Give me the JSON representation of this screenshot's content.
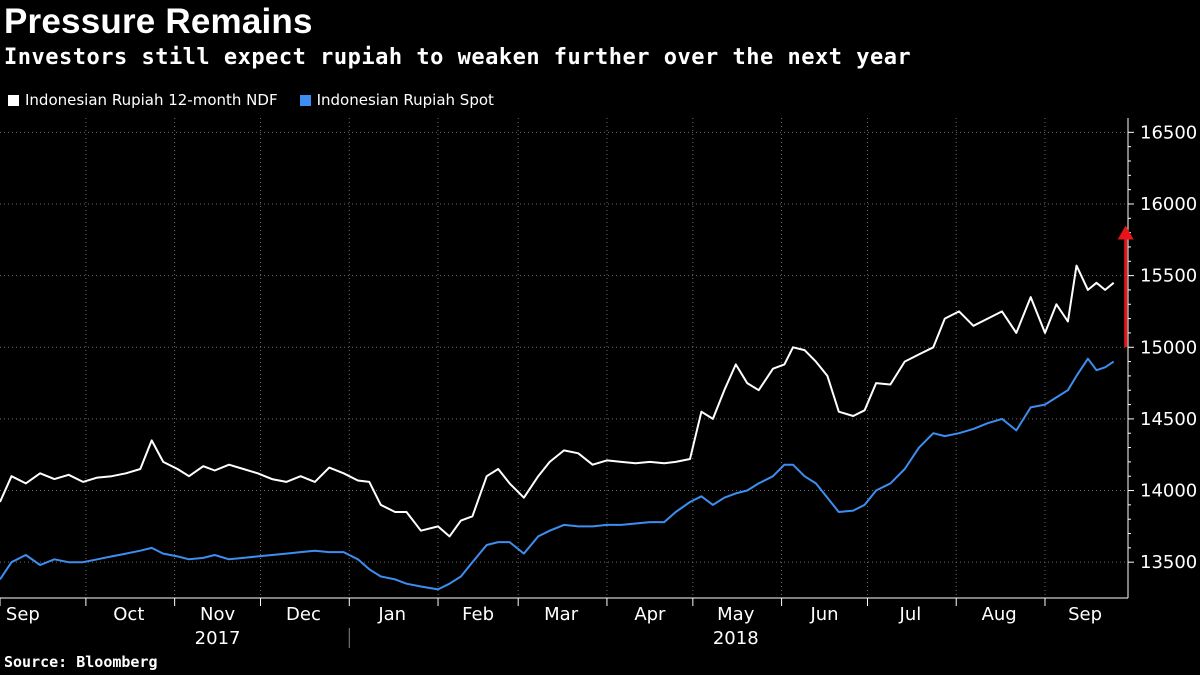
{
  "title": "Pressure Remains",
  "subtitle": "Investors still expect rupiah to weaken further over the next year",
  "source": "Source: Bloomberg",
  "colors": {
    "ndf": "#ffffff",
    "spot": "#3d8ef0",
    "arrow": "#e8141c",
    "grid": "#6a6a6a"
  },
  "chart_data": {
    "type": "line",
    "title": "Pressure Remains",
    "subtitle": "Investors still expect rupiah to weaken further over the next year",
    "ylim": [
      13250,
      16600
    ],
    "y_ticks": [
      13500,
      14000,
      14500,
      15000,
      15500,
      16000,
      16500
    ],
    "y_axis_position": "right",
    "grid": true,
    "legend_position": "top-left",
    "x_start": "2017-09-01",
    "x_end": "2018-09-30",
    "month_labels": [
      {
        "label": "Sep",
        "date": "2017-09-09"
      },
      {
        "label": "Oct",
        "date": "2017-10-16"
      },
      {
        "label": "Nov",
        "date": "2017-11-16"
      },
      {
        "label": "Dec",
        "date": "2017-12-16"
      },
      {
        "label": "Jan",
        "date": "2018-01-16"
      },
      {
        "label": "Feb",
        "date": "2018-02-15"
      },
      {
        "label": "Mar",
        "date": "2018-03-16"
      },
      {
        "label": "Apr",
        "date": "2018-04-16"
      },
      {
        "label": "May",
        "date": "2018-05-16"
      },
      {
        "label": "Jun",
        "date": "2018-06-16"
      },
      {
        "label": "Jul",
        "date": "2018-07-16"
      },
      {
        "label": "Aug",
        "date": "2018-08-16"
      },
      {
        "label": "Sep",
        "date": "2018-09-15"
      }
    ],
    "year_labels": [
      {
        "label": "2017",
        "date": "2017-11-16"
      },
      {
        "label": "2018",
        "date": "2018-05-16"
      }
    ],
    "series": [
      {
        "name": "Indonesian Rupiah 12-month NDF",
        "color": "#ffffff",
        "points": [
          [
            "2017-09-01",
            13920
          ],
          [
            "2017-09-05",
            14100
          ],
          [
            "2017-09-10",
            14050
          ],
          [
            "2017-09-15",
            14120
          ],
          [
            "2017-09-20",
            14080
          ],
          [
            "2017-09-25",
            14110
          ],
          [
            "2017-09-30",
            14060
          ],
          [
            "2017-10-05",
            14090
          ],
          [
            "2017-10-10",
            14100
          ],
          [
            "2017-10-15",
            14120
          ],
          [
            "2017-10-20",
            14150
          ],
          [
            "2017-10-24",
            14350
          ],
          [
            "2017-10-28",
            14200
          ],
          [
            "2017-11-02",
            14150
          ],
          [
            "2017-11-06",
            14100
          ],
          [
            "2017-11-11",
            14170
          ],
          [
            "2017-11-15",
            14140
          ],
          [
            "2017-11-20",
            14180
          ],
          [
            "2017-11-25",
            14150
          ],
          [
            "2017-11-30",
            14120
          ],
          [
            "2017-12-05",
            14080
          ],
          [
            "2017-12-10",
            14060
          ],
          [
            "2017-12-15",
            14100
          ],
          [
            "2017-12-20",
            14060
          ],
          [
            "2017-12-25",
            14160
          ],
          [
            "2017-12-30",
            14120
          ],
          [
            "2018-01-04",
            14070
          ],
          [
            "2018-01-08",
            14060
          ],
          [
            "2018-01-12",
            13900
          ],
          [
            "2018-01-17",
            13850
          ],
          [
            "2018-01-21",
            13850
          ],
          [
            "2018-01-26",
            13720
          ],
          [
            "2018-02-01",
            13750
          ],
          [
            "2018-02-05",
            13680
          ],
          [
            "2018-02-09",
            13790
          ],
          [
            "2018-02-13",
            13820
          ],
          [
            "2018-02-18",
            14100
          ],
          [
            "2018-02-22",
            14150
          ],
          [
            "2018-02-26",
            14050
          ],
          [
            "2018-03-03",
            13950
          ],
          [
            "2018-03-08",
            14100
          ],
          [
            "2018-03-12",
            14200
          ],
          [
            "2018-03-17",
            14280
          ],
          [
            "2018-03-22",
            14260
          ],
          [
            "2018-03-27",
            14180
          ],
          [
            "2018-04-01",
            14210
          ],
          [
            "2018-04-06",
            14200
          ],
          [
            "2018-04-11",
            14190
          ],
          [
            "2018-04-16",
            14200
          ],
          [
            "2018-04-21",
            14190
          ],
          [
            "2018-04-25",
            14200
          ],
          [
            "2018-04-30",
            14220
          ],
          [
            "2018-05-04",
            14550
          ],
          [
            "2018-05-08",
            14500
          ],
          [
            "2018-05-12",
            14700
          ],
          [
            "2018-05-16",
            14880
          ],
          [
            "2018-05-20",
            14750
          ],
          [
            "2018-05-24",
            14700
          ],
          [
            "2018-05-29",
            14850
          ],
          [
            "2018-06-02",
            14880
          ],
          [
            "2018-06-05",
            15000
          ],
          [
            "2018-06-09",
            14980
          ],
          [
            "2018-06-13",
            14900
          ],
          [
            "2018-06-17",
            14800
          ],
          [
            "2018-06-21",
            14550
          ],
          [
            "2018-06-26",
            14520
          ],
          [
            "2018-06-30",
            14560
          ],
          [
            "2018-07-04",
            14750
          ],
          [
            "2018-07-09",
            14740
          ],
          [
            "2018-07-14",
            14900
          ],
          [
            "2018-07-19",
            14950
          ],
          [
            "2018-07-24",
            15000
          ],
          [
            "2018-07-28",
            15200
          ],
          [
            "2018-08-02",
            15250
          ],
          [
            "2018-08-07",
            15150
          ],
          [
            "2018-08-12",
            15200
          ],
          [
            "2018-08-17",
            15250
          ],
          [
            "2018-08-22",
            15100
          ],
          [
            "2018-08-27",
            15350
          ],
          [
            "2018-09-01",
            15100
          ],
          [
            "2018-09-05",
            15300
          ],
          [
            "2018-09-09",
            15180
          ],
          [
            "2018-09-12",
            15570
          ],
          [
            "2018-09-16",
            15400
          ],
          [
            "2018-09-19",
            15450
          ],
          [
            "2018-09-22",
            15400
          ],
          [
            "2018-09-25",
            15450
          ]
        ]
      },
      {
        "name": "Indonesian Rupiah Spot",
        "color": "#3d8ef0",
        "points": [
          [
            "2017-09-01",
            13380
          ],
          [
            "2017-09-05",
            13500
          ],
          [
            "2017-09-10",
            13550
          ],
          [
            "2017-09-15",
            13480
          ],
          [
            "2017-09-20",
            13520
          ],
          [
            "2017-09-25",
            13500
          ],
          [
            "2017-09-30",
            13500
          ],
          [
            "2017-10-05",
            13520
          ],
          [
            "2017-10-10",
            13540
          ],
          [
            "2017-10-15",
            13560
          ],
          [
            "2017-10-20",
            13580
          ],
          [
            "2017-10-24",
            13600
          ],
          [
            "2017-10-28",
            13560
          ],
          [
            "2017-11-02",
            13540
          ],
          [
            "2017-11-06",
            13520
          ],
          [
            "2017-11-11",
            13530
          ],
          [
            "2017-11-15",
            13550
          ],
          [
            "2017-11-20",
            13520
          ],
          [
            "2017-11-25",
            13530
          ],
          [
            "2017-11-30",
            13540
          ],
          [
            "2017-12-05",
            13550
          ],
          [
            "2017-12-10",
            13560
          ],
          [
            "2017-12-15",
            13570
          ],
          [
            "2017-12-20",
            13580
          ],
          [
            "2017-12-25",
            13570
          ],
          [
            "2017-12-30",
            13570
          ],
          [
            "2018-01-04",
            13520
          ],
          [
            "2018-01-08",
            13450
          ],
          [
            "2018-01-12",
            13400
          ],
          [
            "2018-01-17",
            13380
          ],
          [
            "2018-01-21",
            13350
          ],
          [
            "2018-01-26",
            13330
          ],
          [
            "2018-02-01",
            13310
          ],
          [
            "2018-02-05",
            13350
          ],
          [
            "2018-02-09",
            13400
          ],
          [
            "2018-02-13",
            13500
          ],
          [
            "2018-02-18",
            13620
          ],
          [
            "2018-02-22",
            13640
          ],
          [
            "2018-02-26",
            13640
          ],
          [
            "2018-03-03",
            13560
          ],
          [
            "2018-03-08",
            13680
          ],
          [
            "2018-03-12",
            13720
          ],
          [
            "2018-03-17",
            13760
          ],
          [
            "2018-03-22",
            13750
          ],
          [
            "2018-03-27",
            13750
          ],
          [
            "2018-04-01",
            13760
          ],
          [
            "2018-04-06",
            13760
          ],
          [
            "2018-04-11",
            13770
          ],
          [
            "2018-04-16",
            13780
          ],
          [
            "2018-04-21",
            13780
          ],
          [
            "2018-04-25",
            13850
          ],
          [
            "2018-04-30",
            13920
          ],
          [
            "2018-05-04",
            13960
          ],
          [
            "2018-05-08",
            13900
          ],
          [
            "2018-05-12",
            13950
          ],
          [
            "2018-05-16",
            13980
          ],
          [
            "2018-05-20",
            14000
          ],
          [
            "2018-05-24",
            14050
          ],
          [
            "2018-05-29",
            14100
          ],
          [
            "2018-06-02",
            14180
          ],
          [
            "2018-06-05",
            14180
          ],
          [
            "2018-06-09",
            14100
          ],
          [
            "2018-06-13",
            14050
          ],
          [
            "2018-06-17",
            13950
          ],
          [
            "2018-06-21",
            13850
          ],
          [
            "2018-06-26",
            13860
          ],
          [
            "2018-06-30",
            13900
          ],
          [
            "2018-07-04",
            14000
          ],
          [
            "2018-07-09",
            14050
          ],
          [
            "2018-07-14",
            14150
          ],
          [
            "2018-07-19",
            14300
          ],
          [
            "2018-07-24",
            14400
          ],
          [
            "2018-07-28",
            14380
          ],
          [
            "2018-08-02",
            14400
          ],
          [
            "2018-08-07",
            14430
          ],
          [
            "2018-08-12",
            14470
          ],
          [
            "2018-08-17",
            14500
          ],
          [
            "2018-08-22",
            14420
          ],
          [
            "2018-08-27",
            14580
          ],
          [
            "2018-09-01",
            14600
          ],
          [
            "2018-09-05",
            14650
          ],
          [
            "2018-09-09",
            14700
          ],
          [
            "2018-09-12",
            14800
          ],
          [
            "2018-09-16",
            14920
          ],
          [
            "2018-09-19",
            14840
          ],
          [
            "2018-09-22",
            14860
          ],
          [
            "2018-09-25",
            14900
          ]
        ]
      }
    ],
    "annotations": [
      {
        "type": "arrow",
        "date": "2018-09-25",
        "from": 15000,
        "to": 15850,
        "color": "#e8141c"
      }
    ]
  }
}
